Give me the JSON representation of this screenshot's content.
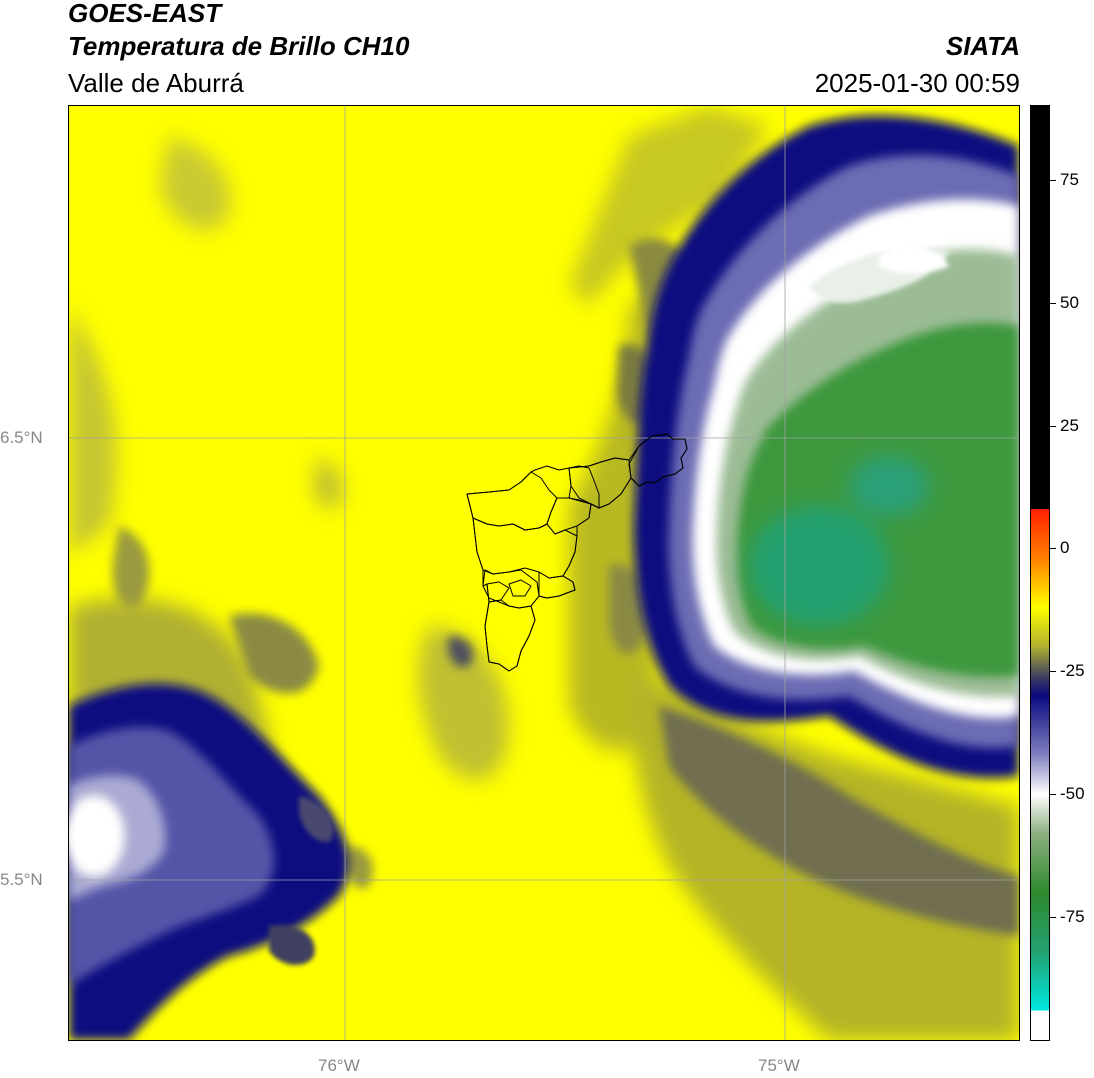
{
  "header": {
    "title_line1": "GOES-EAST",
    "title_line2": "Temperatura de Brillo CH10",
    "subtitle": "Valle de Aburrá",
    "brand": "SIATA",
    "timestamp": "2025-01-30 00:59"
  },
  "map": {
    "lat_labels": [
      "6.5°N",
      "5.5°N"
    ],
    "lon_labels": [
      "76°W",
      "75°W"
    ],
    "gridlines": true,
    "colors": {
      "yellow": "#ffff00",
      "olive": "#b8b820",
      "dark_olive": "#7a7a40",
      "navy": "#0a0a7a",
      "blue_light": "#8080c0",
      "white": "#ffffff",
      "green_light": "#a6c8a0",
      "green": "#3c9a3c",
      "teal_green": "#22a070"
    }
  },
  "colorbar": {
    "range": [
      -100,
      90
    ],
    "ticks": [
      {
        "value": 75,
        "label": "75"
      },
      {
        "value": 50,
        "label": "50"
      },
      {
        "value": 25,
        "label": "25"
      },
      {
        "value": 0,
        "label": "0"
      },
      {
        "value": -25,
        "label": "-25"
      },
      {
        "value": -50,
        "label": "-50"
      },
      {
        "value": -75,
        "label": "-75"
      }
    ],
    "stops": [
      {
        "value": 90,
        "color": "#000000"
      },
      {
        "value": 8,
        "color": "#000000"
      },
      {
        "value": 8,
        "color": "#ff2000"
      },
      {
        "value": -2,
        "color": "#ff8000"
      },
      {
        "value": -12,
        "color": "#ffff00"
      },
      {
        "value": -20,
        "color": "#b0b030"
      },
      {
        "value": -26,
        "color": "#404060"
      },
      {
        "value": -30,
        "color": "#0a0a80"
      },
      {
        "value": -42,
        "color": "#8080c0"
      },
      {
        "value": -50,
        "color": "#ffffff"
      },
      {
        "value": -58,
        "color": "#8cb080"
      },
      {
        "value": -70,
        "color": "#2e8a2e"
      },
      {
        "value": -82,
        "color": "#22a070"
      },
      {
        "value": -94,
        "color": "#00e8e0"
      },
      {
        "value": -94,
        "color": "#ffffff"
      },
      {
        "value": -100,
        "color": "#ffffff"
      }
    ]
  }
}
